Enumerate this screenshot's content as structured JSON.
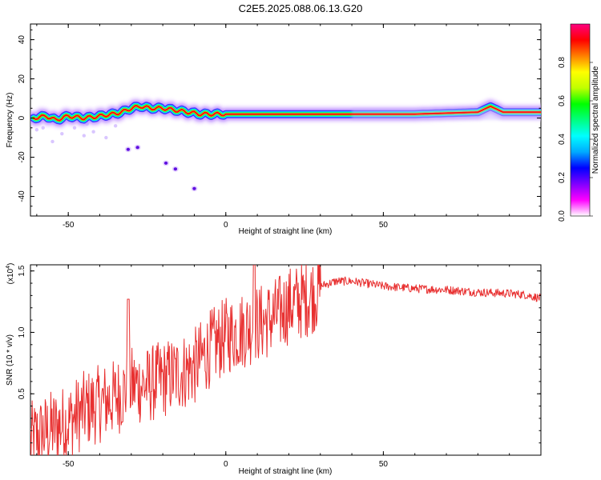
{
  "title": "C2E5.2025.088.06.13.G20",
  "chart_data": [
    {
      "type": "heatmap",
      "xlabel": "Height of straight line (km)",
      "ylabel": "Frequency (Hz)",
      "xlim": [
        -62,
        100
      ],
      "ylim": [
        -50,
        48
      ],
      "xticks": [
        -50,
        0,
        50
      ],
      "yticks": [
        -40,
        -20,
        0,
        20,
        40
      ],
      "ridge": [
        {
          "x": -61,
          "f": 0
        },
        {
          "x": -57,
          "f": 1
        },
        {
          "x": -54,
          "f": -1
        },
        {
          "x": -50,
          "f": 1
        },
        {
          "x": -45,
          "f": 0
        },
        {
          "x": -40,
          "f": 1
        },
        {
          "x": -36,
          "f": 2
        },
        {
          "x": -33,
          "f": 3
        },
        {
          "x": -30,
          "f": 5
        },
        {
          "x": -27,
          "f": 6
        },
        {
          "x": -24,
          "f": 5
        },
        {
          "x": -20,
          "f": 5
        },
        {
          "x": -16,
          "f": 4
        },
        {
          "x": -12,
          "f": 3
        },
        {
          "x": -8,
          "f": 2
        },
        {
          "x": 0,
          "f": 2
        },
        {
          "x": 10,
          "f": 2
        },
        {
          "x": 30,
          "f": 2
        },
        {
          "x": 60,
          "f": 2
        },
        {
          "x": 80,
          "f": 3
        },
        {
          "x": 84,
          "f": 6
        },
        {
          "x": 88,
          "f": 3
        },
        {
          "x": 100,
          "f": 3
        }
      ],
      "scatter": [
        {
          "x": -31,
          "f": -16
        },
        {
          "x": -28,
          "f": -15
        },
        {
          "x": -16,
          "f": -26
        },
        {
          "x": -10,
          "f": -36
        },
        {
          "x": -19,
          "f": -23
        }
      ],
      "colorbar": {
        "label": "Normalized spectral amplitude",
        "ticks": [
          "0.0",
          "0.2",
          "0.4",
          "0.6",
          "0.8"
        ],
        "colors": [
          "#ffffff",
          "#ff00ff",
          "#8000ff",
          "#0000ff",
          "#00aaff",
          "#00ffff",
          "#00ff80",
          "#00ff00",
          "#c0ff00",
          "#ffff00",
          "#ff8000",
          "#ff0000",
          "#ff0080"
        ]
      }
    },
    {
      "type": "line",
      "xlabel": "Height of straight line (km)",
      "ylabel": "SNR (10 * v/v)",
      "exponent": "(x10",
      "exponent_power": "4",
      "exponent_close": ")",
      "xlim": [
        -62,
        100
      ],
      "ylim": [
        0,
        1.55
      ],
      "xticks": [
        -50,
        0,
        50
      ],
      "yticks": [
        "0.5",
        "1.0",
        "1.5"
      ],
      "color": "#e83030",
      "x": [
        -62,
        -55,
        -50,
        -45,
        -40,
        -35,
        -30,
        -25,
        -20,
        -15,
        -10,
        -5,
        0,
        5,
        10,
        15,
        20,
        25,
        30,
        35,
        40,
        50,
        60,
        70,
        80,
        90,
        95,
        100
      ],
      "y": [
        0.15,
        0.25,
        0.3,
        0.4,
        0.45,
        0.5,
        0.6,
        0.6,
        0.65,
        0.7,
        0.75,
        0.9,
        1.0,
        1.05,
        1.1,
        1.15,
        1.25,
        1.3,
        1.38,
        1.42,
        1.42,
        1.38,
        1.36,
        1.35,
        1.33,
        1.32,
        1.31,
        1.28
      ]
    }
  ]
}
